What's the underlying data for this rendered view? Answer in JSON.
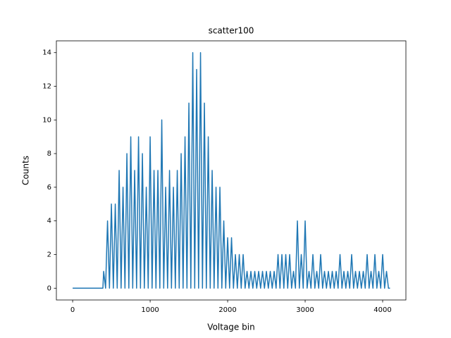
{
  "chart_data": {
    "type": "line",
    "title": "scatter100",
    "x_label": "Voltage bin",
    "y_label": "Counts",
    "color": "#1f77b4",
    "x": [
      0,
      390,
      400,
      425,
      450,
      475,
      500,
      525,
      550,
      575,
      600,
      625,
      650,
      675,
      700,
      725,
      750,
      775,
      800,
      825,
      850,
      875,
      900,
      925,
      950,
      975,
      1000,
      1025,
      1050,
      1075,
      1100,
      1125,
      1150,
      1175,
      1200,
      1225,
      1250,
      1275,
      1300,
      1325,
      1350,
      1375,
      1400,
      1425,
      1450,
      1475,
      1500,
      1525,
      1550,
      1575,
      1600,
      1625,
      1650,
      1675,
      1700,
      1725,
      1750,
      1775,
      1800,
      1825,
      1850,
      1875,
      1900,
      1925,
      1950,
      1975,
      2000,
      2025,
      2050,
      2075,
      2100,
      2125,
      2150,
      2175,
      2200,
      2225,
      2250,
      2275,
      2300,
      2325,
      2350,
      2375,
      2400,
      2425,
      2450,
      2475,
      2500,
      2525,
      2550,
      2575,
      2600,
      2625,
      2650,
      2675,
      2700,
      2725,
      2750,
      2775,
      2800,
      2825,
      2850,
      2875,
      2900,
      2925,
      2950,
      2975,
      3000,
      3025,
      3050,
      3075,
      3100,
      3125,
      3150,
      3175,
      3200,
      3225,
      3250,
      3275,
      3300,
      3325,
      3350,
      3375,
      3400,
      3425,
      3450,
      3475,
      3500,
      3525,
      3550,
      3575,
      3600,
      3625,
      3650,
      3675,
      3700,
      3725,
      3750,
      3775,
      3800,
      3825,
      3850,
      3875,
      3900,
      3925,
      3950,
      3975,
      4000,
      4025,
      4050,
      4075,
      4095
    ],
    "values": [
      0,
      0,
      1,
      0,
      4,
      0,
      5,
      0,
      5,
      0,
      7,
      0,
      6,
      0,
      8,
      0,
      9,
      0,
      7,
      0,
      9,
      0,
      8,
      0,
      6,
      0,
      9,
      0,
      7,
      0,
      7,
      0,
      10,
      0,
      6,
      0,
      7,
      0,
      6,
      0,
      7,
      0,
      8,
      0,
      9,
      0,
      11,
      0,
      14,
      0,
      13,
      0,
      14,
      0,
      11,
      0,
      9,
      0,
      7,
      0,
      6,
      0,
      6,
      0,
      4,
      0,
      3,
      0,
      3,
      0,
      2,
      0,
      2,
      0,
      2,
      0,
      1,
      0,
      1,
      0,
      1,
      0,
      1,
      0,
      1,
      0,
      1,
      0,
      1,
      0,
      1,
      0,
      2,
      0,
      2,
      0,
      2,
      0,
      2,
      0,
      1,
      0,
      4,
      0,
      2,
      0,
      4,
      0,
      1,
      0,
      2,
      0,
      1,
      0,
      2,
      0,
      1,
      0,
      1,
      0,
      1,
      0,
      1,
      0,
      2,
      0,
      1,
      0,
      1,
      0,
      2,
      0,
      1,
      0,
      1,
      0,
      1,
      0,
      2,
      0,
      1,
      0,
      2,
      0,
      1,
      0,
      2,
      0,
      1,
      0,
      0
    ],
    "xlim": [
      -210,
      4300
    ],
    "ylim": [
      -0.7,
      14.7
    ],
    "xticks": [
      0,
      1000,
      2000,
      3000,
      4000
    ],
    "yticks": [
      0,
      2,
      4,
      6,
      8,
      10,
      12,
      14
    ]
  }
}
